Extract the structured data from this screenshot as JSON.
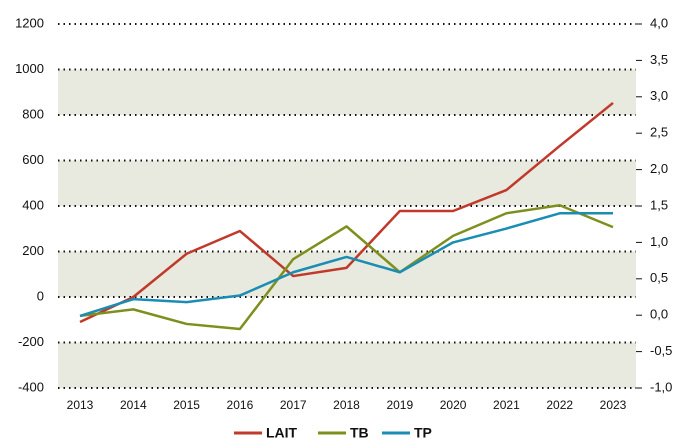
{
  "chart_data": {
    "type": "line",
    "categories": [
      "2013",
      "2014",
      "2015",
      "2016",
      "2017",
      "2018",
      "2019",
      "2020",
      "2021",
      "2022",
      "2023"
    ],
    "series": [
      {
        "name": "LAIT",
        "color": "#c0392b",
        "axis": "y",
        "values": [
          -110,
          0,
          190,
          290,
          92,
          128,
          378,
          378,
          470,
          664,
          853
        ]
      },
      {
        "name": "TB",
        "color": "#7f8f1d",
        "axis": "y2",
        "values": [
          -0.01,
          0.08,
          -0.12,
          -0.19,
          0.77,
          1.22,
          0.59,
          1.09,
          1.4,
          1.51,
          1.21
        ]
      },
      {
        "name": "TP",
        "color": "#1b8db3",
        "axis": "y2",
        "values": [
          -0.01,
          0.22,
          0.18,
          0.27,
          0.59,
          0.8,
          0.59,
          1.0,
          1.19,
          1.4,
          1.4
        ]
      }
    ],
    "ylim": [
      -400,
      1200
    ],
    "yticks": [
      -400,
      -200,
      0,
      200,
      400,
      600,
      800,
      1000,
      1200
    ],
    "y2lim": [
      -1,
      4
    ],
    "y2ticks": [
      {
        "value": -1,
        "label": "-1,0"
      },
      {
        "value": -0.5,
        "label": "-0,5"
      },
      {
        "value": 0,
        "label": "0,0"
      },
      {
        "value": 0.5,
        "label": "0,5"
      },
      {
        "value": 1,
        "label": "1,0"
      },
      {
        "value": 1.5,
        "label": "1,5"
      },
      {
        "value": 2,
        "label": "2,0"
      },
      {
        "value": 2.5,
        "label": "2,5"
      },
      {
        "value": 3,
        "label": "3,0"
      },
      {
        "value": 3.5,
        "label": "3,5"
      },
      {
        "value": 4,
        "label": "4,0"
      }
    ],
    "grid": true,
    "legend": "bottom"
  }
}
